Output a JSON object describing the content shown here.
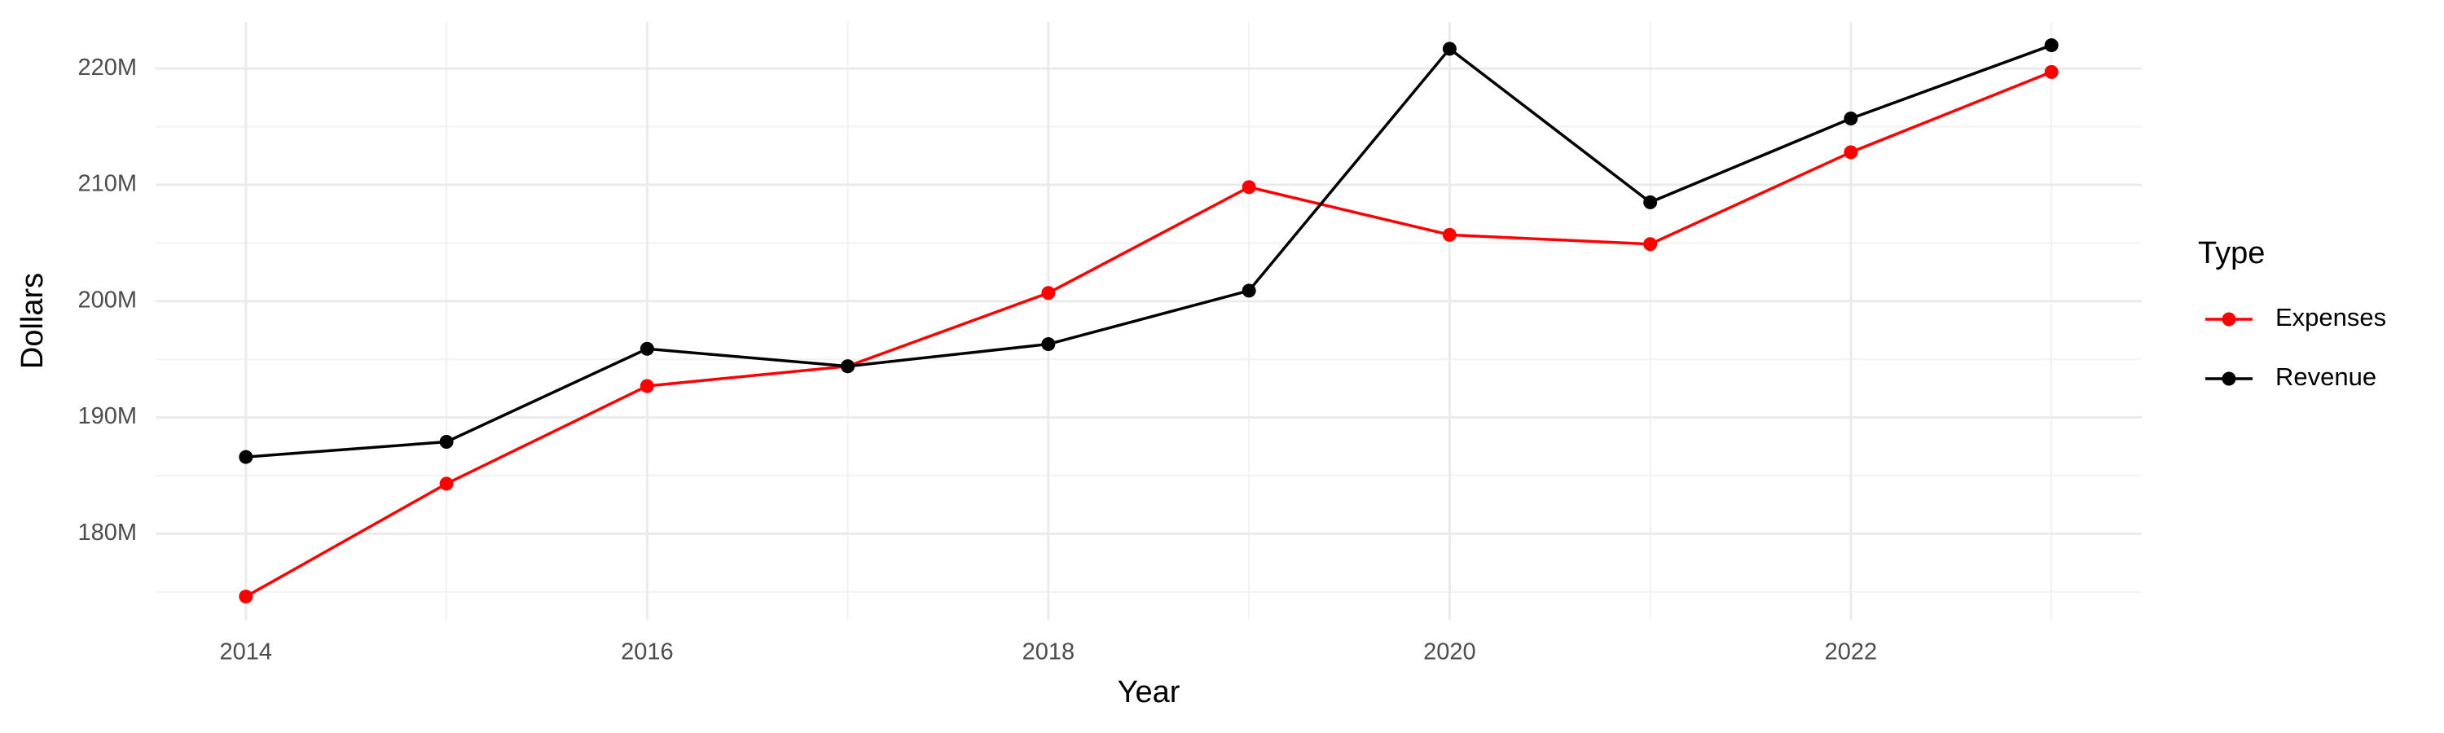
{
  "chart_data": {
    "type": "line",
    "x_label": "Year",
    "y_label": "Dollars",
    "legend_title": "Type",
    "x": [
      2014,
      2015,
      2016,
      2017,
      2018,
      2019,
      2020,
      2021,
      2022,
      2023
    ],
    "series": [
      {
        "name": "Expenses",
        "color": "#ff0000",
        "values": [
          174600000,
          184300000,
          192700000,
          194400000,
          200700000,
          209800000,
          205700000,
          204900000,
          212800000,
          219700000
        ]
      },
      {
        "name": "Revenue",
        "color": "#000000",
        "values": [
          186600000,
          187900000,
          195900000,
          194400000,
          196300000,
          200900000,
          221700000,
          208500000,
          215700000,
          222000000
        ]
      }
    ],
    "xlim": [
      2013.55,
      2023.45
    ],
    "xticks": [
      2014,
      2016,
      2018,
      2020,
      2022
    ],
    "ylim": [
      172600000,
      224000000
    ],
    "yticks": [
      {
        "value": 180000000,
        "label": "180M"
      },
      {
        "value": 190000000,
        "label": "190M"
      },
      {
        "value": 200000000,
        "label": "200M"
      },
      {
        "value": 210000000,
        "label": "210M"
      },
      {
        "value": 220000000,
        "label": "220M"
      }
    ],
    "grid": true,
    "legend_position": "right"
  }
}
